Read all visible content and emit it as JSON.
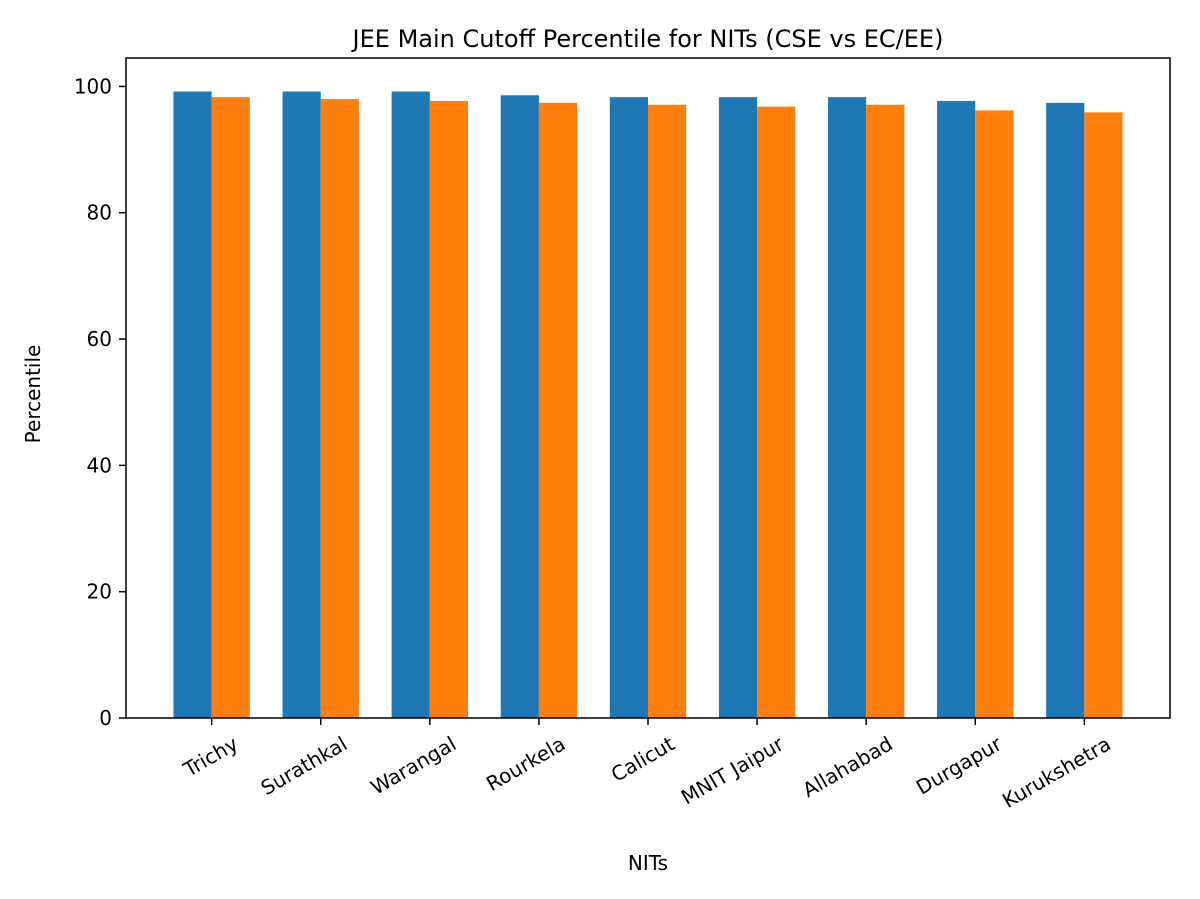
{
  "chart_data": {
    "type": "bar",
    "title": "JEE Main Cutoff Percentile for NITs (CSE vs EC/EE)",
    "xlabel": "NITs",
    "ylabel": "Percentile",
    "categories": [
      "Trichy",
      "Surathkal",
      "Warangal",
      "Rourkela",
      "Calicut",
      "MNIT Jaipur",
      "Allahabad",
      "Durgapur",
      "Kurukshetra"
    ],
    "series": [
      {
        "values": [
          99.2,
          99.2,
          99.2,
          98.6,
          98.3,
          98.3,
          98.3,
          97.7,
          97.4
        ],
        "color": "#1f77b4"
      },
      {
        "values": [
          98.3,
          98.0,
          97.7,
          97.4,
          97.1,
          96.8,
          97.1,
          96.2,
          95.9
        ],
        "color": "#ff7f0e"
      }
    ],
    "ylim": [
      0,
      104.5
    ],
    "yticks": [
      0,
      20,
      40,
      60,
      80,
      100
    ],
    "grid": false,
    "legend": "none",
    "xtick_rotation": 30
  }
}
